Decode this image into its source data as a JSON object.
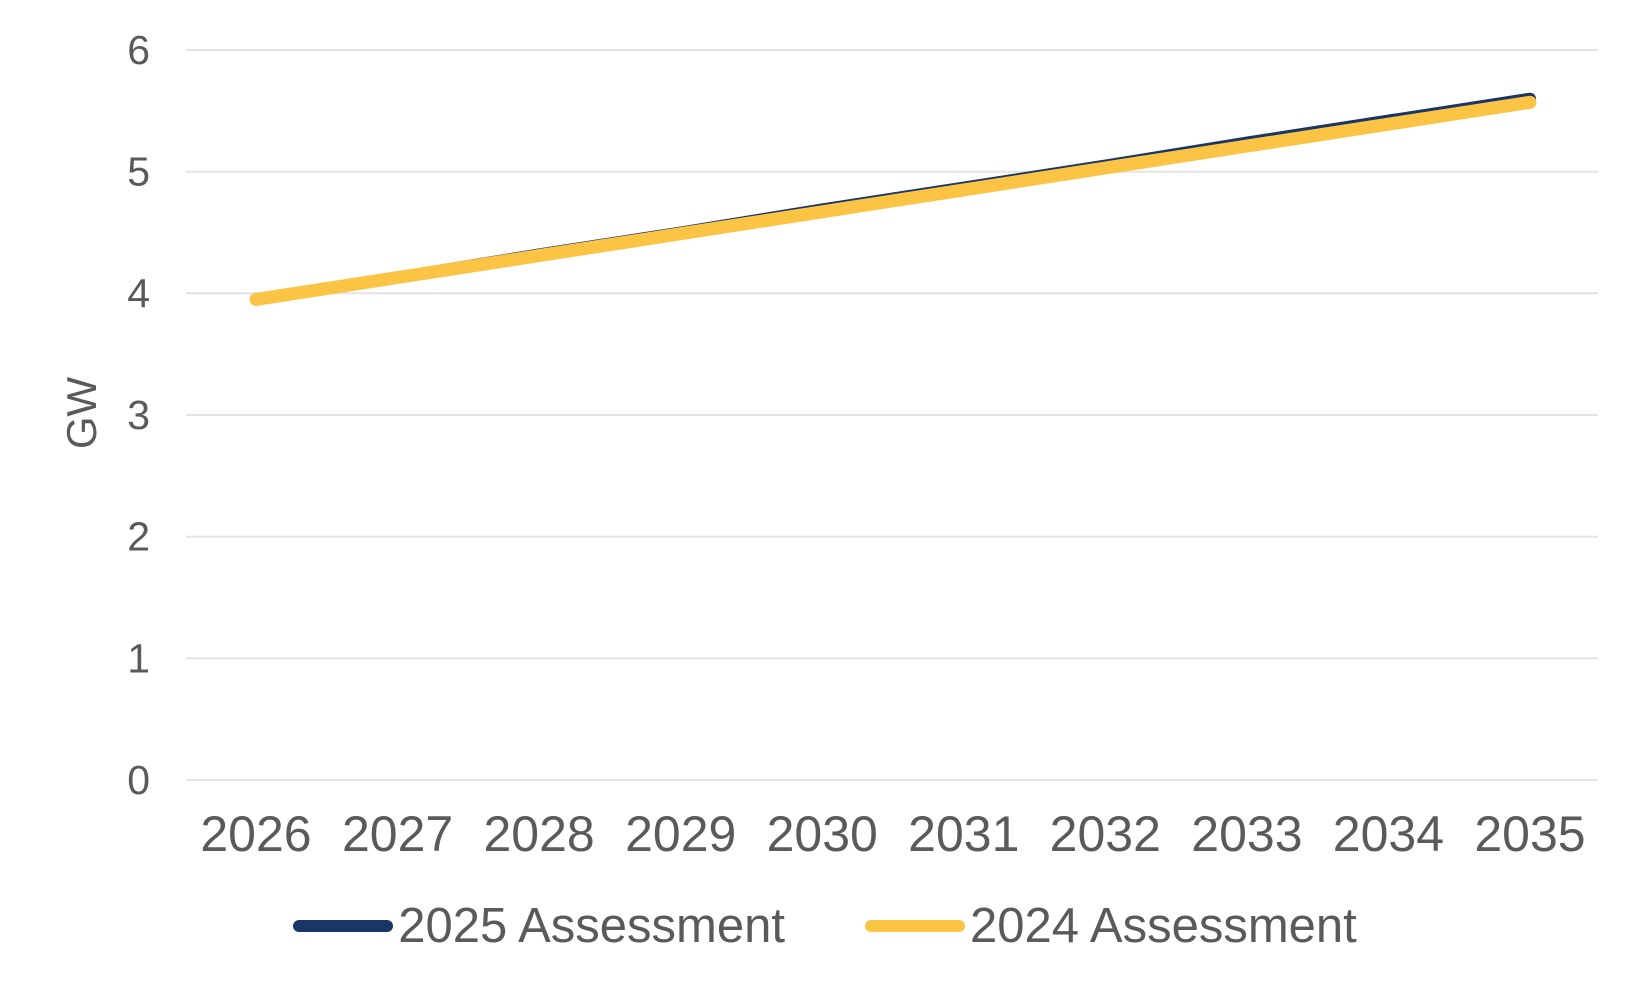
{
  "chart_data": {
    "type": "line",
    "categories": [
      "2026",
      "2027",
      "2028",
      "2029",
      "2030",
      "2031",
      "2032",
      "2033",
      "2034",
      "2035"
    ],
    "series": [
      {
        "name": "2025 Assessment",
        "color": "#1a3667",
        "values": [
          3.95,
          4.13,
          4.32,
          4.5,
          4.69,
          4.87,
          5.05,
          5.24,
          5.42,
          5.6
        ]
      },
      {
        "name": "2024 Assessment",
        "color": "#fcc444",
        "values": [
          3.95,
          4.13,
          4.31,
          4.49,
          4.67,
          4.85,
          5.03,
          5.21,
          5.39,
          5.57
        ]
      }
    ],
    "ylabel": "GW",
    "ylim": [
      0,
      6
    ],
    "yticks": [
      0,
      1,
      2,
      3,
      4,
      5,
      6
    ],
    "grid": true,
    "legend_position": "bottom"
  },
  "colors": {
    "background": "#ffffff",
    "axis_text": "#5a5a5a",
    "gridline": "#e3e3e3"
  }
}
